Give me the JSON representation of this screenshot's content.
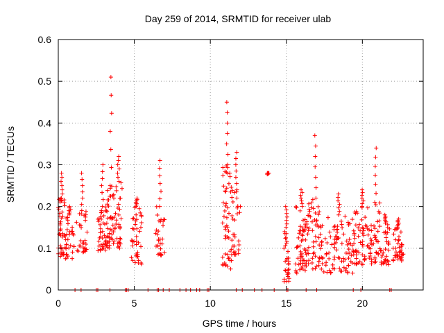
{
  "chart_data": {
    "type": "scatter",
    "title": "Day 259 of 2014, SRMTID for receiver ulab",
    "xlabel": "GPS time / hours",
    "ylabel": "SRMTID / TECUs",
    "xlim": [
      0,
      24
    ],
    "ylim": [
      0,
      0.6
    ],
    "x_ticks": [
      0,
      5,
      10,
      15,
      20
    ],
    "x_tick_labels": [
      "0",
      "5",
      "10",
      "15",
      "20"
    ],
    "y_ticks": [
      0,
      0.1,
      0.2,
      0.3,
      0.4,
      0.5,
      0.6
    ],
    "y_tick_labels": [
      "0",
      "0.1",
      "0.2",
      "0.3",
      "0.4",
      "0.5",
      "0.6"
    ],
    "grid": true,
    "marker": "+",
    "series": [
      {
        "name": "ulab",
        "color": "#ff0000",
        "clusters": [
          {
            "x0": 0.0,
            "x1": 0.45,
            "y_lo": 0.08,
            "y_hi": 0.22,
            "n": 40,
            "peak": 0.28
          },
          {
            "x0": 0.45,
            "x1": 1.05,
            "y_lo": 0.07,
            "y_hi": 0.18,
            "n": 30,
            "peak": 0.2
          },
          {
            "x0": 1.2,
            "x1": 1.9,
            "y_lo": 0.09,
            "y_hi": 0.19,
            "n": 30,
            "peak": 0.28
          },
          {
            "x0": 2.6,
            "x1": 3.2,
            "y_lo": 0.09,
            "y_hi": 0.2,
            "n": 40,
            "peak": 0.3
          },
          {
            "x0": 3.2,
            "x1": 3.7,
            "y_lo": 0.1,
            "y_hi": 0.25,
            "n": 40,
            "peak": 0.51
          },
          {
            "x0": 3.7,
            "x1": 4.2,
            "y_lo": 0.1,
            "y_hi": 0.26,
            "n": 30,
            "peak": 0.32
          },
          {
            "x0": 4.8,
            "x1": 5.5,
            "y_lo": 0.06,
            "y_hi": 0.2,
            "n": 40,
            "peak": 0.22
          },
          {
            "x0": 6.4,
            "x1": 7.0,
            "y_lo": 0.08,
            "y_hi": 0.2,
            "n": 30,
            "peak": 0.31
          },
          {
            "x0": 10.8,
            "x1": 11.4,
            "y_lo": 0.05,
            "y_hi": 0.3,
            "n": 50,
            "peak": 0.45
          },
          {
            "x0": 11.4,
            "x1": 12.0,
            "y_lo": 0.08,
            "y_hi": 0.24,
            "n": 30,
            "peak": 0.33
          },
          {
            "x0": 13.7,
            "x1": 13.9,
            "y_lo": 0.27,
            "y_hi": 0.28,
            "n": 2,
            "peak": 0.28
          },
          {
            "x0": 14.8,
            "x1": 15.2,
            "y_lo": 0.02,
            "y_hi": 0.15,
            "n": 30,
            "peak": 0.2
          },
          {
            "x0": 15.6,
            "x1": 16.4,
            "y_lo": 0.04,
            "y_hi": 0.2,
            "n": 60,
            "peak": 0.24
          },
          {
            "x0": 16.4,
            "x1": 17.4,
            "y_lo": 0.05,
            "y_hi": 0.22,
            "n": 60,
            "peak": 0.37
          },
          {
            "x0": 17.4,
            "x1": 19.5,
            "y_lo": 0.04,
            "y_hi": 0.18,
            "n": 90,
            "peak": 0.23
          },
          {
            "x0": 19.5,
            "x1": 20.5,
            "y_lo": 0.06,
            "y_hi": 0.2,
            "n": 50,
            "peak": 0.24
          },
          {
            "x0": 20.5,
            "x1": 21.2,
            "y_lo": 0.06,
            "y_hi": 0.21,
            "n": 40,
            "peak": 0.34
          },
          {
            "x0": 21.2,
            "x1": 21.8,
            "y_lo": 0.06,
            "y_hi": 0.16,
            "n": 30,
            "peak": 0.18
          },
          {
            "x0": 22.0,
            "x1": 22.7,
            "y_lo": 0.07,
            "y_hi": 0.15,
            "n": 40,
            "peak": 0.17
          }
        ],
        "zero_x": [
          1.1,
          1.5,
          2.5,
          2.6,
          3.4,
          4.4,
          4.5,
          4.6,
          5.9,
          6.5,
          6.6,
          6.9,
          7.3,
          8.0,
          8.4,
          8.7,
          9.1,
          9.3,
          9.8,
          9.9,
          11.7,
          12.1,
          12.9,
          13.4,
          14.2,
          15.0,
          15.1,
          16.3,
          17.0,
          19.4,
          19.9,
          21.8,
          21.9
        ]
      }
    ]
  }
}
